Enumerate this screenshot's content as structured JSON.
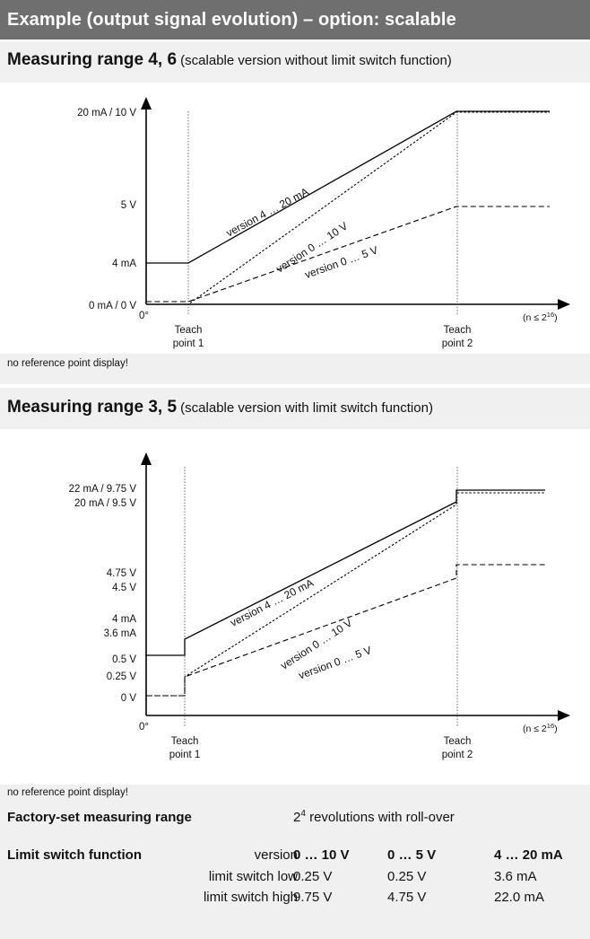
{
  "header": {
    "title": "Example (output signal evolution) – option: scalable"
  },
  "section1": {
    "title_main": "Measuring range 4, 6",
    "title_sub": " (scalable version without limit switch function)",
    "note": "no reference point display!"
  },
  "section2": {
    "title_main": "Measuring range 3, 5",
    "title_sub": " (scalable version with limit switch function)",
    "note": "no reference point display!"
  },
  "chart_data": [
    {
      "type": "line",
      "title": "Measuring range 4, 6",
      "x_categories": [
        "0°",
        "Teach point 1",
        "Teach point 2",
        "(n ≤ 2¹⁶)"
      ],
      "ytick_labels": [
        "20 mA / 10 V",
        "5 V",
        "4 mA",
        "0 mA / 0 V"
      ],
      "origin_label": "0°",
      "x_end_label": "(n ≤ 2",
      "x_end_exp": "16",
      "x_end_close": ")",
      "teach_label_1": "Teach",
      "teach_label_2": "point 1",
      "teach_label_3": "point 2",
      "series": [
        {
          "name": "version 4 … 20 mA",
          "style": "solid",
          "points": [
            [
              "0°",
              "4 mA"
            ],
            [
              "Teach point 1",
              "4 mA"
            ],
            [
              "Teach point 2",
              "20 mA"
            ],
            [
              "end",
              "20 mA"
            ]
          ]
        },
        {
          "name": "version 0 … 10 V",
          "style": "dotted",
          "points": [
            [
              "0°",
              "0 V"
            ],
            [
              "Teach point 1",
              "0 V"
            ],
            [
              "Teach point 2",
              "10 V"
            ],
            [
              "end",
              "10 V"
            ]
          ]
        },
        {
          "name": "version 0 … 5 V",
          "style": "dashed",
          "points": [
            [
              "0°",
              "0 V"
            ],
            [
              "Teach point 1",
              "0 V"
            ],
            [
              "Teach point 2",
              "5 V"
            ],
            [
              "end",
              "5 V"
            ]
          ]
        }
      ],
      "grid": false
    },
    {
      "type": "line",
      "title": "Measuring range 3, 5",
      "x_categories": [
        "0°",
        "Teach point 1",
        "Teach point 2",
        "(n ≤ 2¹⁶)"
      ],
      "ytick_labels": [
        "22 mA / 9.75 V",
        "20 mA / 9.5 V",
        "4.75 V",
        "4.5 V",
        "4 mA",
        "3.6 mA",
        "0.5 V",
        "0.25 V",
        "0 V"
      ],
      "origin_label": "0°",
      "x_end_label": "(n ≤ 2",
      "x_end_exp": "16",
      "x_end_close": ")",
      "teach_label_1": "Teach",
      "teach_label_2": "point 1",
      "teach_label_3": "point 2",
      "series": [
        {
          "name": "version 4 … 20 mA",
          "style": "solid",
          "points": [
            [
              "0°",
              "3.6 mA"
            ],
            [
              "Teach point 1",
              "3.6 mA"
            ],
            [
              "Teach point 1",
              "4 mA"
            ],
            [
              "Teach point 2",
              "20 mA"
            ],
            [
              "Teach point 2",
              "22 mA"
            ],
            [
              "end",
              "22 mA"
            ]
          ]
        },
        {
          "name": "version 0 … 10 V",
          "style": "dotted",
          "points": [
            [
              "0°",
              "0.25 V"
            ],
            [
              "Teach point 1",
              "0.25 V"
            ],
            [
              "Teach point 1",
              "0.5 V"
            ],
            [
              "Teach point 2",
              "9.5 V"
            ],
            [
              "Teach point 2",
              "9.75 V"
            ],
            [
              "end",
              "9.75 V"
            ]
          ]
        },
        {
          "name": "version 0 … 5 V",
          "style": "dashed",
          "points": [
            [
              "0°",
              "0.25 V"
            ],
            [
              "Teach point 1",
              "0.25 V"
            ],
            [
              "Teach point 1",
              "0.5 V"
            ],
            [
              "Teach point 2",
              "4.5 V"
            ],
            [
              "Teach point 2",
              "4.75 V"
            ],
            [
              "end",
              "4.75 V"
            ]
          ]
        }
      ],
      "grid": false
    }
  ],
  "factory": {
    "label": "Factory-set measuring range",
    "value_pre": "2",
    "value_exp": "4",
    "value_post": " revolutions with roll-over"
  },
  "limit_table": {
    "label": "Limit switch function",
    "header_label": "version",
    "columns": [
      "0 … 10 V",
      "0 … 5 V",
      "4 … 20 mA"
    ],
    "rows": [
      {
        "label": "limit switch low",
        "values": [
          "0.25 V",
          "0.25 V",
          "3.6 mA"
        ]
      },
      {
        "label": "limit switch high",
        "values": [
          "9.75 V",
          "4.75 V",
          "22.0 mA"
        ]
      }
    ]
  }
}
